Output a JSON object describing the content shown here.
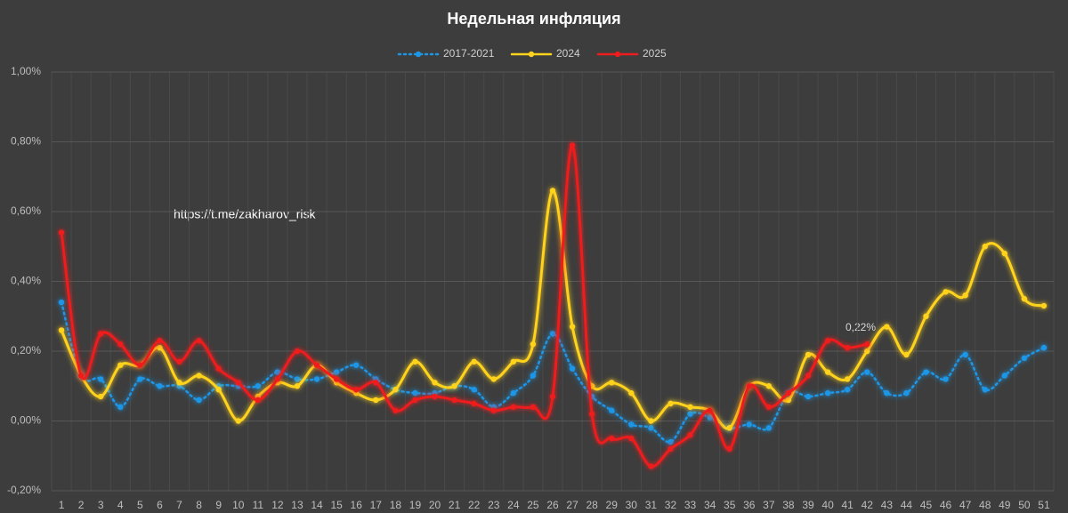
{
  "chart_data": {
    "type": "line",
    "title": "Недельная инфляция",
    "categories": [
      "1",
      "2",
      "3",
      "4",
      "5",
      "6",
      "7",
      "8",
      "9",
      "10",
      "11",
      "12",
      "13",
      "14",
      "15",
      "16",
      "17",
      "18",
      "19",
      "20",
      "21",
      "22",
      "23",
      "24",
      "25",
      "26",
      "27",
      "28",
      "29",
      "30",
      "31",
      "32",
      "33",
      "34",
      "35",
      "36",
      "37",
      "38",
      "39",
      "40",
      "41",
      "42",
      "43",
      "44",
      "45",
      "46",
      "47",
      "48",
      "49",
      "50",
      "51"
    ],
    "series": [
      {
        "name": "2017-2021",
        "color": "#1e96e6",
        "dotted": true,
        "values": [
          0.34,
          0.13,
          0.12,
          0.04,
          0.12,
          0.1,
          0.1,
          0.06,
          0.1,
          0.1,
          0.1,
          0.14,
          0.12,
          0.12,
          0.14,
          0.16,
          0.12,
          0.09,
          0.08,
          0.08,
          0.1,
          0.09,
          0.04,
          0.08,
          0.13,
          0.25,
          0.15,
          0.07,
          0.03,
          -0.01,
          -0.02,
          -0.06,
          0.02,
          0.01,
          -0.02,
          -0.01,
          -0.02,
          0.08,
          0.07,
          0.08,
          0.09,
          0.14,
          0.08,
          0.08,
          0.14,
          0.12,
          0.19,
          0.09,
          0.13,
          0.18,
          0.21
        ]
      },
      {
        "name": "2024",
        "color": "#ffd21e",
        "values": [
          0.26,
          0.13,
          0.07,
          0.16,
          0.16,
          0.21,
          0.11,
          0.13,
          0.09,
          0.0,
          0.07,
          0.11,
          0.1,
          0.16,
          0.11,
          0.08,
          0.06,
          0.09,
          0.17,
          0.11,
          0.1,
          0.17,
          0.12,
          0.17,
          0.22,
          0.66,
          0.27,
          0.1,
          0.11,
          0.08,
          0.0,
          0.05,
          0.04,
          0.03,
          -0.02,
          0.1,
          0.1,
          0.06,
          0.19,
          0.14,
          0.12,
          0.2,
          0.27,
          0.19,
          0.3,
          0.37,
          0.36,
          0.5,
          0.48,
          0.35,
          0.33
        ]
      },
      {
        "name": "2025",
        "color": "#ee1c1c",
        "values": [
          0.54,
          0.13,
          0.25,
          0.22,
          0.16,
          0.23,
          0.17,
          0.23,
          0.15,
          0.11,
          0.06,
          0.12,
          0.2,
          0.16,
          0.12,
          0.09,
          0.11,
          0.03,
          0.06,
          0.07,
          0.06,
          0.05,
          0.03,
          0.04,
          0.04,
          0.07,
          0.79,
          0.02,
          -0.05,
          -0.05,
          -0.13,
          -0.08,
          -0.04,
          0.03,
          -0.08,
          0.1,
          0.04,
          0.08,
          0.13,
          0.23,
          0.21,
          0.22,
          null,
          null,
          null,
          null,
          null,
          null,
          null,
          null,
          null
        ]
      }
    ],
    "ylim": [
      -0.2,
      1.0
    ],
    "yticks": [
      {
        "value": -0.2,
        "label": "-0,20%"
      },
      {
        "value": 0,
        "label": "0,00%"
      },
      {
        "value": 0.2,
        "label": "0,20%"
      },
      {
        "value": 0.4,
        "label": "0,40%"
      },
      {
        "value": 0.6,
        "label": "0,60%"
      },
      {
        "value": 0.8,
        "label": "0,80%"
      },
      {
        "value": 1.0,
        "label": "1,00%"
      }
    ],
    "grid": true,
    "legend": "top",
    "annotations": [
      "0,22%",
      "https://t.me/zakharov_risk"
    ]
  }
}
